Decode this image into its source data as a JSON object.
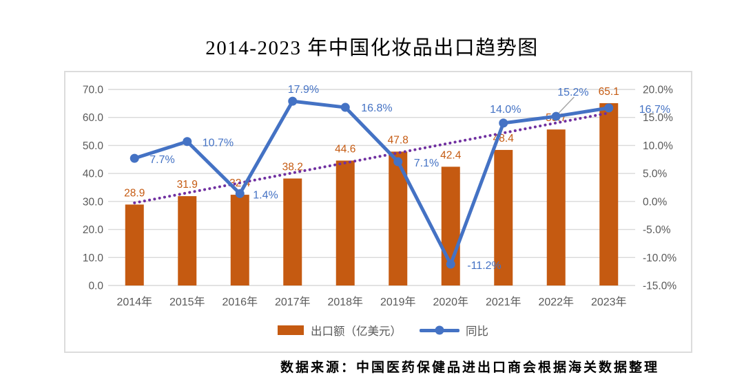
{
  "title": "2014-2023 年中国化妆品出口趋势图",
  "source_note": "数据来源：中国医药保健品进出口商会根据海关数据整理",
  "legend": {
    "bars": "出口额（亿美元）",
    "line": "同比"
  },
  "colors": {
    "bar": "#C55A11",
    "line": "#4472C4",
    "trendline": "#7030A0",
    "axis_text": "#595959",
    "gridline": "#D9D9D9",
    "leader": "#A6A6A6"
  },
  "chart_data": {
    "type": "combo bar+line",
    "categories": [
      "2014年",
      "2015年",
      "2016年",
      "2017年",
      "2018年",
      "2019年",
      "2020年",
      "2021年",
      "2022年",
      "2023年"
    ],
    "series": [
      {
        "name": "出口额（亿美元）",
        "type": "bar",
        "axis": "left",
        "values": [
          28.9,
          31.9,
          32.4,
          38.2,
          44.6,
          47.8,
          42.4,
          48.4,
          55.7,
          65.1
        ],
        "labels": [
          "28.9",
          "31.9",
          "32.4",
          "38.2",
          "44.6",
          "47.8",
          "42.4",
          "48.4",
          "55.7",
          "65.1"
        ]
      },
      {
        "name": "同比",
        "type": "line",
        "axis": "right",
        "values": [
          7.7,
          10.7,
          1.4,
          17.9,
          16.8,
          7.1,
          -11.2,
          14.0,
          15.2,
          16.7
        ],
        "labels": [
          "7.7%",
          "10.7%",
          "1.4%",
          "17.9%",
          "16.8%",
          "7.1%",
          "-11.2%",
          "14.0%",
          "15.2%",
          "16.7%"
        ]
      }
    ],
    "trendline": {
      "for_series": "出口额（亿美元）",
      "style": "dotted",
      "color": "#7030A0",
      "start_value": 29.5,
      "end_value": 61.6
    },
    "left_axis": {
      "min": 0,
      "max": 70,
      "ticks": [
        "70.0",
        "60.0",
        "50.0",
        "40.0",
        "30.0",
        "20.0",
        "10.0",
        "0.0"
      ]
    },
    "right_axis": {
      "min": -15,
      "max": 20,
      "ticks": [
        "20.0%",
        "15.0%",
        "10.0%",
        "5.0%",
        "0.0%",
        "-5.0%",
        "-10.0%",
        "-15.0%"
      ]
    },
    "grid": true,
    "legend_position": "bottom"
  }
}
